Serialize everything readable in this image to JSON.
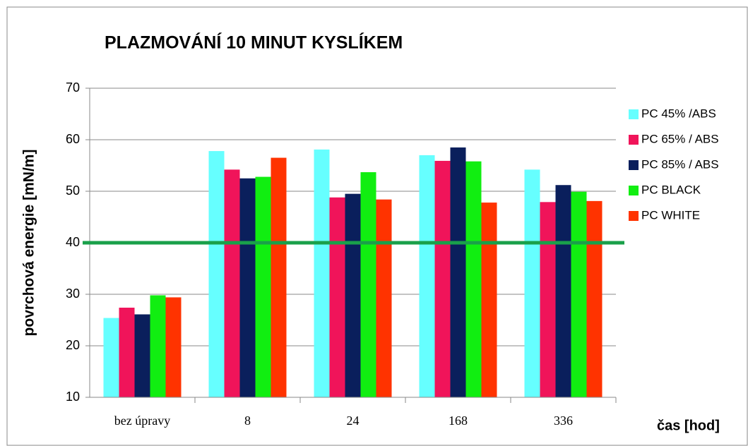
{
  "chart_data": {
    "type": "bar",
    "title": "PLAZMOVÁNÍ 10 MINUT KYSLÍKEM",
    "y_label": "povrchová energie [mN/m]",
    "x_label": "čas  [hod]",
    "categories": [
      "bez úpravy",
      "8",
      "24",
      "168",
      "336"
    ],
    "series": [
      {
        "name": "PC 45% /ABS",
        "color": "#66ffff",
        "values": [
          25.4,
          57.8,
          58.1,
          57.0,
          54.2
        ]
      },
      {
        "name": "PC 65% / ABS",
        "color": "#f0145a",
        "values": [
          27.4,
          54.2,
          48.8,
          55.9,
          47.9
        ]
      },
      {
        "name": "PC 85% / ABS",
        "color": "#0a1f5c",
        "values": [
          26.1,
          52.5,
          49.5,
          58.5,
          51.2
        ]
      },
      {
        "name": "PC BLACK",
        "color": "#11ee11",
        "values": [
          29.8,
          52.8,
          53.7,
          55.8,
          49.9
        ]
      },
      {
        "name": "PC WHITE",
        "color": "#ff3300",
        "values": [
          29.4,
          56.5,
          48.4,
          47.8,
          48.1
        ]
      }
    ],
    "reference_line": {
      "value": 40,
      "color": "#1aa04a"
    },
    "ylim": [
      10,
      70
    ],
    "yticks": [
      10,
      20,
      30,
      40,
      50,
      60,
      70
    ],
    "grid": true,
    "legend": "right"
  }
}
